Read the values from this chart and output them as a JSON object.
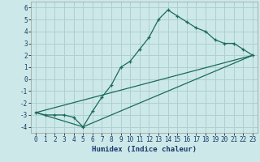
{
  "xlabel": "Humidex (Indice chaleur)",
  "bg_color": "#cce8e8",
  "grid_color": "#b0d0d0",
  "line_color": "#1a6b5a",
  "series": [
    {
      "x": [
        0,
        1,
        2,
        3,
        4,
        5,
        6,
        7,
        8,
        9,
        10,
        11,
        12,
        13,
        14,
        15,
        16,
        17,
        18,
        19,
        20,
        21,
        22,
        23
      ],
      "y": [
        -2.8,
        -3.0,
        -3.0,
        -3.0,
        -3.2,
        -4.0,
        -2.7,
        -1.5,
        -0.5,
        1.0,
        1.5,
        2.5,
        3.5,
        5.0,
        5.8,
        5.3,
        4.8,
        4.3,
        4.0,
        3.3,
        3.0,
        3.0,
        2.5,
        2.0
      ],
      "has_markers": true
    },
    {
      "x": [
        0,
        5,
        23
      ],
      "y": [
        -2.8,
        -4.0,
        2.0
      ],
      "has_markers": false
    },
    {
      "x": [
        0,
        23
      ],
      "y": [
        -2.8,
        2.0
      ],
      "has_markers": false
    }
  ],
  "xlim": [
    -0.5,
    23.5
  ],
  "ylim": [
    -4.5,
    6.5
  ],
  "xticks": [
    0,
    1,
    2,
    3,
    4,
    5,
    6,
    7,
    8,
    9,
    10,
    11,
    12,
    13,
    14,
    15,
    16,
    17,
    18,
    19,
    20,
    21,
    22,
    23
  ],
  "yticks": [
    -4,
    -3,
    -2,
    -1,
    0,
    1,
    2,
    3,
    4,
    5,
    6
  ],
  "xlabel_fontsize": 6.5,
  "tick_fontsize": 5.5
}
